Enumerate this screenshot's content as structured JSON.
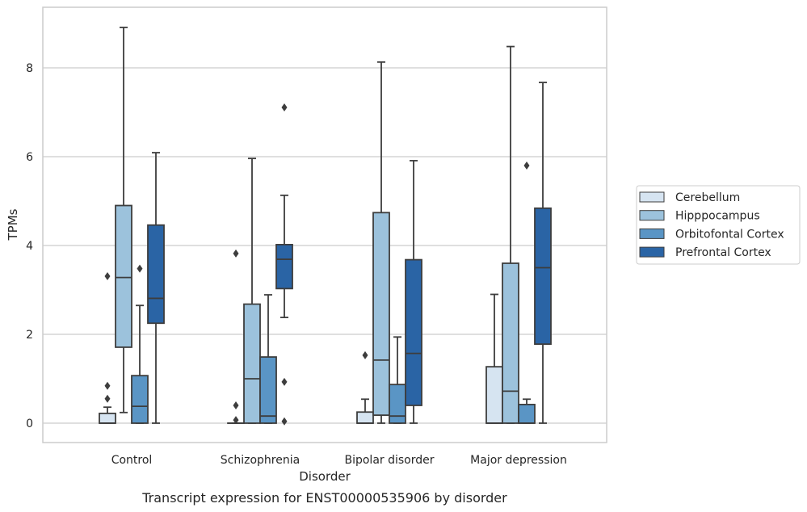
{
  "chart_data": {
    "type": "box",
    "title": "Transcript expression for ENST00000535906 by disorder",
    "xlabel": "Disorder",
    "ylabel": "TPMs",
    "ylim": [
      -0.43,
      9.4
    ],
    "yticks": [
      0,
      2,
      4,
      6,
      8
    ],
    "grid": true,
    "legend_position": "right",
    "categories": [
      "Control",
      "Schizophrenia",
      "Bipolar disorder",
      "Major depression"
    ],
    "series": [
      {
        "name": "Cerebellum",
        "color": "#d6e4f1",
        "boxes": [
          {
            "category": "Control",
            "whisker_low": 0,
            "q1": 0,
            "median": 0,
            "q3": 0.22,
            "whisker_high": 0.36,
            "outliers": [
              0.55,
              0.84,
              3.31
            ]
          },
          {
            "category": "Schizophrenia",
            "whisker_low": 0,
            "q1": 0,
            "median": 0,
            "q3": 0,
            "whisker_high": 0,
            "outliers": [
              0.07,
              0.4,
              3.82
            ]
          },
          {
            "category": "Bipolar disorder",
            "whisker_low": 0,
            "q1": 0,
            "median": 0,
            "q3": 0.25,
            "whisker_high": 0.54,
            "outliers": [
              1.53
            ]
          },
          {
            "category": "Major depression",
            "whisker_low": 0,
            "q1": 0,
            "median": 0,
            "q3": 1.27,
            "whisker_high": 2.9,
            "outliers": []
          }
        ]
      },
      {
        "name": "Hipppocampus",
        "color": "#9cc2dc",
        "boxes": [
          {
            "category": "Control",
            "whisker_low": 0.24,
            "q1": 1.71,
            "median": 3.28,
            "q3": 4.9,
            "whisker_high": 8.91,
            "outliers": []
          },
          {
            "category": "Schizophrenia",
            "whisker_low": 0,
            "q1": 0,
            "median": 1.0,
            "q3": 2.68,
            "whisker_high": 5.96,
            "outliers": []
          },
          {
            "category": "Bipolar disorder",
            "whisker_low": 0,
            "q1": 0.18,
            "median": 1.42,
            "q3": 4.74,
            "whisker_high": 8.13,
            "outliers": []
          },
          {
            "category": "Major depression",
            "whisker_low": 0,
            "q1": 0,
            "median": 0.72,
            "q3": 3.6,
            "whisker_high": 8.48,
            "outliers": []
          }
        ]
      },
      {
        "name": "Orbitofontal Cortex",
        "color": "#5a95c5",
        "boxes": [
          {
            "category": "Control",
            "whisker_low": 0,
            "q1": 0,
            "median": 0.38,
            "q3": 1.07,
            "whisker_high": 2.65,
            "outliers": [
              3.48
            ]
          },
          {
            "category": "Schizophrenia",
            "whisker_low": 0,
            "q1": 0,
            "median": 0.16,
            "q3": 1.49,
            "whisker_high": 2.89,
            "outliers": []
          },
          {
            "category": "Bipolar disorder",
            "whisker_low": 0,
            "q1": 0,
            "median": 0.16,
            "q3": 0.87,
            "whisker_high": 1.94,
            "outliers": []
          },
          {
            "category": "Major depression",
            "whisker_low": 0,
            "q1": 0,
            "median": 0,
            "q3": 0.42,
            "whisker_high": 0.54,
            "outliers": [
              5.8
            ]
          }
        ]
      },
      {
        "name": "Prefrontal Cortex",
        "color": "#2a64a5",
        "boxes": [
          {
            "category": "Control",
            "whisker_low": 0,
            "q1": 2.25,
            "median": 2.81,
            "q3": 4.46,
            "whisker_high": 6.09,
            "outliers": []
          },
          {
            "category": "Schizophrenia",
            "whisker_low": 2.38,
            "q1": 3.03,
            "median": 3.69,
            "q3": 4.02,
            "whisker_high": 5.13,
            "outliers": [
              0.04,
              0.93,
              7.11
            ]
          },
          {
            "category": "Bipolar disorder",
            "whisker_low": 0,
            "q1": 0.4,
            "median": 1.57,
            "q3": 3.68,
            "whisker_high": 5.91,
            "outliers": []
          },
          {
            "category": "Major depression",
            "whisker_low": 0,
            "q1": 1.78,
            "median": 3.5,
            "q3": 4.84,
            "whisker_high": 7.67,
            "outliers": []
          }
        ]
      }
    ]
  }
}
